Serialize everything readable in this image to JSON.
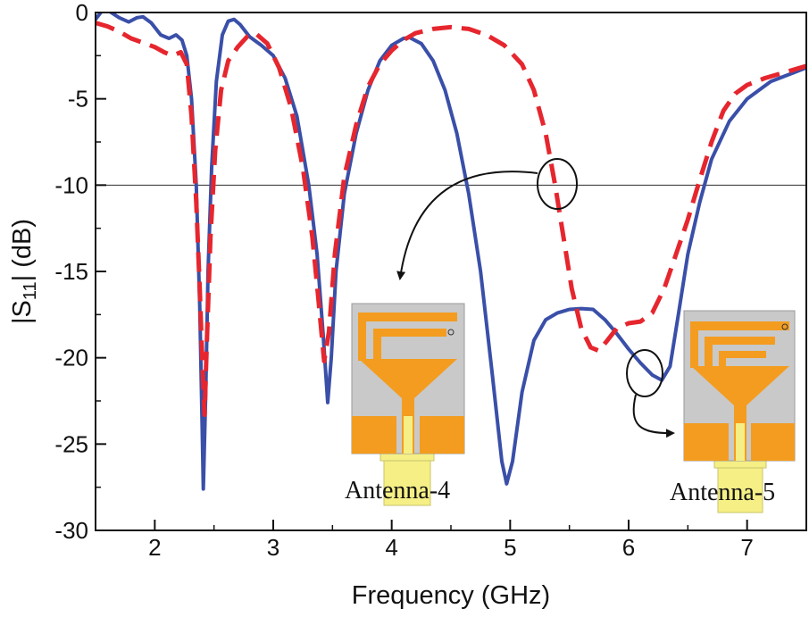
{
  "chart_data": {
    "type": "line",
    "xlabel": "Frequency (GHz)",
    "ylabel_main": "|S",
    "ylabel_sub": "11",
    "ylabel_tail": "| (dB)",
    "xlim": [
      1.5,
      7.5
    ],
    "ylim": [
      -30,
      0
    ],
    "xticks": [
      2,
      3,
      4,
      5,
      6,
      7
    ],
    "yticks": [
      0,
      -5,
      -10,
      -15,
      -20,
      -25,
      -30
    ],
    "reference_line_y": -10,
    "grid": false,
    "series": [
      {
        "key": "solid",
        "color": "#3a4fa8",
        "dash": "none",
        "points": [
          [
            1.5,
            -0.4
          ],
          [
            1.55,
            0.05
          ],
          [
            1.62,
            0.05
          ],
          [
            1.7,
            -0.3
          ],
          [
            1.78,
            -0.55
          ],
          [
            1.85,
            -0.3
          ],
          [
            1.9,
            -0.25
          ],
          [
            1.97,
            -0.6
          ],
          [
            2.05,
            -1.3
          ],
          [
            2.12,
            -1.5
          ],
          [
            2.18,
            -1.3
          ],
          [
            2.23,
            -1.6
          ],
          [
            2.27,
            -2.5
          ],
          [
            2.31,
            -5
          ],
          [
            2.35,
            -10
          ],
          [
            2.38,
            -17
          ],
          [
            2.4,
            -24
          ],
          [
            2.41,
            -27.6
          ],
          [
            2.43,
            -22
          ],
          [
            2.45,
            -15
          ],
          [
            2.48,
            -9
          ],
          [
            2.52,
            -4
          ],
          [
            2.57,
            -1.3
          ],
          [
            2.62,
            -0.5
          ],
          [
            2.67,
            -0.4
          ],
          [
            2.72,
            -0.7
          ],
          [
            2.8,
            -1.4
          ],
          [
            2.9,
            -1.9
          ],
          [
            3.0,
            -2.5
          ],
          [
            3.1,
            -3.8
          ],
          [
            3.2,
            -6
          ],
          [
            3.3,
            -10
          ],
          [
            3.37,
            -14
          ],
          [
            3.42,
            -18.5
          ],
          [
            3.46,
            -22.6
          ],
          [
            3.49,
            -20
          ],
          [
            3.53,
            -15
          ],
          [
            3.6,
            -10.5
          ],
          [
            3.7,
            -7
          ],
          [
            3.8,
            -4.5
          ],
          [
            3.9,
            -2.8
          ],
          [
            4.0,
            -1.9
          ],
          [
            4.1,
            -1.5
          ],
          [
            4.15,
            -1.45
          ],
          [
            4.25,
            -1.8
          ],
          [
            4.35,
            -2.8
          ],
          [
            4.45,
            -4.5
          ],
          [
            4.55,
            -7
          ],
          [
            4.65,
            -10.5
          ],
          [
            4.75,
            -15
          ],
          [
            4.85,
            -21
          ],
          [
            4.93,
            -26
          ],
          [
            4.97,
            -27.3
          ],
          [
            5.02,
            -26
          ],
          [
            5.1,
            -22
          ],
          [
            5.2,
            -19
          ],
          [
            5.3,
            -17.8
          ],
          [
            5.4,
            -17.4
          ],
          [
            5.5,
            -17.2
          ],
          [
            5.6,
            -17.15
          ],
          [
            5.7,
            -17.2
          ],
          [
            5.8,
            -17.8
          ],
          [
            5.9,
            -18.6
          ],
          [
            6.0,
            -19.5
          ],
          [
            6.1,
            -20.3
          ],
          [
            6.2,
            -21
          ],
          [
            6.28,
            -21.3
          ],
          [
            6.35,
            -20.5
          ],
          [
            6.42,
            -17.5
          ],
          [
            6.5,
            -14
          ],
          [
            6.6,
            -11
          ],
          [
            6.7,
            -8.5
          ],
          [
            6.85,
            -6.3
          ],
          [
            7.0,
            -5
          ],
          [
            7.2,
            -4
          ],
          [
            7.5,
            -3.2
          ]
        ]
      },
      {
        "key": "dashed",
        "color": "#e6262e",
        "dash": "22,11",
        "points": [
          [
            1.5,
            -0.6
          ],
          [
            1.6,
            -0.8
          ],
          [
            1.7,
            -1.1
          ],
          [
            1.8,
            -1.5
          ],
          [
            1.9,
            -1.75
          ],
          [
            2.0,
            -2.0
          ],
          [
            2.08,
            -2.3
          ],
          [
            2.15,
            -2.5
          ],
          [
            2.22,
            -2.3
          ],
          [
            2.27,
            -3
          ],
          [
            2.31,
            -6
          ],
          [
            2.35,
            -11
          ],
          [
            2.38,
            -16
          ],
          [
            2.4,
            -20
          ],
          [
            2.42,
            -23.3
          ],
          [
            2.44,
            -19
          ],
          [
            2.47,
            -13
          ],
          [
            2.51,
            -8
          ],
          [
            2.56,
            -4.5
          ],
          [
            2.62,
            -2.8
          ],
          [
            2.7,
            -2
          ],
          [
            2.78,
            -1.4
          ],
          [
            2.85,
            -1.2
          ],
          [
            2.95,
            -1.8
          ],
          [
            3.05,
            -3.2
          ],
          [
            3.15,
            -5.5
          ],
          [
            3.25,
            -9
          ],
          [
            3.33,
            -13
          ],
          [
            3.38,
            -16.5
          ],
          [
            3.43,
            -20.2
          ],
          [
            3.47,
            -18.5
          ],
          [
            3.52,
            -14
          ],
          [
            3.6,
            -9.5
          ],
          [
            3.7,
            -6.5
          ],
          [
            3.8,
            -4.3
          ],
          [
            3.9,
            -3
          ],
          [
            4.0,
            -2.2
          ],
          [
            4.1,
            -1.6
          ],
          [
            4.2,
            -1.2
          ],
          [
            4.35,
            -0.95
          ],
          [
            4.5,
            -0.85
          ],
          [
            4.65,
            -0.95
          ],
          [
            4.8,
            -1.3
          ],
          [
            4.95,
            -1.9
          ],
          [
            5.1,
            -3
          ],
          [
            5.2,
            -4.5
          ],
          [
            5.3,
            -7
          ],
          [
            5.38,
            -10
          ],
          [
            5.45,
            -13
          ],
          [
            5.52,
            -16
          ],
          [
            5.6,
            -18.3
          ],
          [
            5.68,
            -19.4
          ],
          [
            5.75,
            -19.6
          ],
          [
            5.82,
            -19
          ],
          [
            5.9,
            -18.3
          ],
          [
            6.0,
            -18
          ],
          [
            6.1,
            -17.9
          ],
          [
            6.2,
            -17.4
          ],
          [
            6.3,
            -16
          ],
          [
            6.4,
            -14
          ],
          [
            6.5,
            -12
          ],
          [
            6.6,
            -9.7
          ],
          [
            6.7,
            -7.5
          ],
          [
            6.8,
            -5.7
          ],
          [
            6.9,
            -4.7
          ],
          [
            7.0,
            -4.2
          ],
          [
            7.15,
            -3.8
          ],
          [
            7.3,
            -3.5
          ],
          [
            7.5,
            -3.1
          ]
        ]
      }
    ],
    "annotations": [
      {
        "key": "a4",
        "text": "Antenna-4"
      },
      {
        "key": "a5",
        "text": "Antenna-5"
      }
    ]
  },
  "colors": {
    "substrate": "#c9c9c9",
    "copper": "#f39c1f",
    "connector": "#f5ef86",
    "connector_edge": "#c9c46a",
    "arrow": "#111111"
  }
}
